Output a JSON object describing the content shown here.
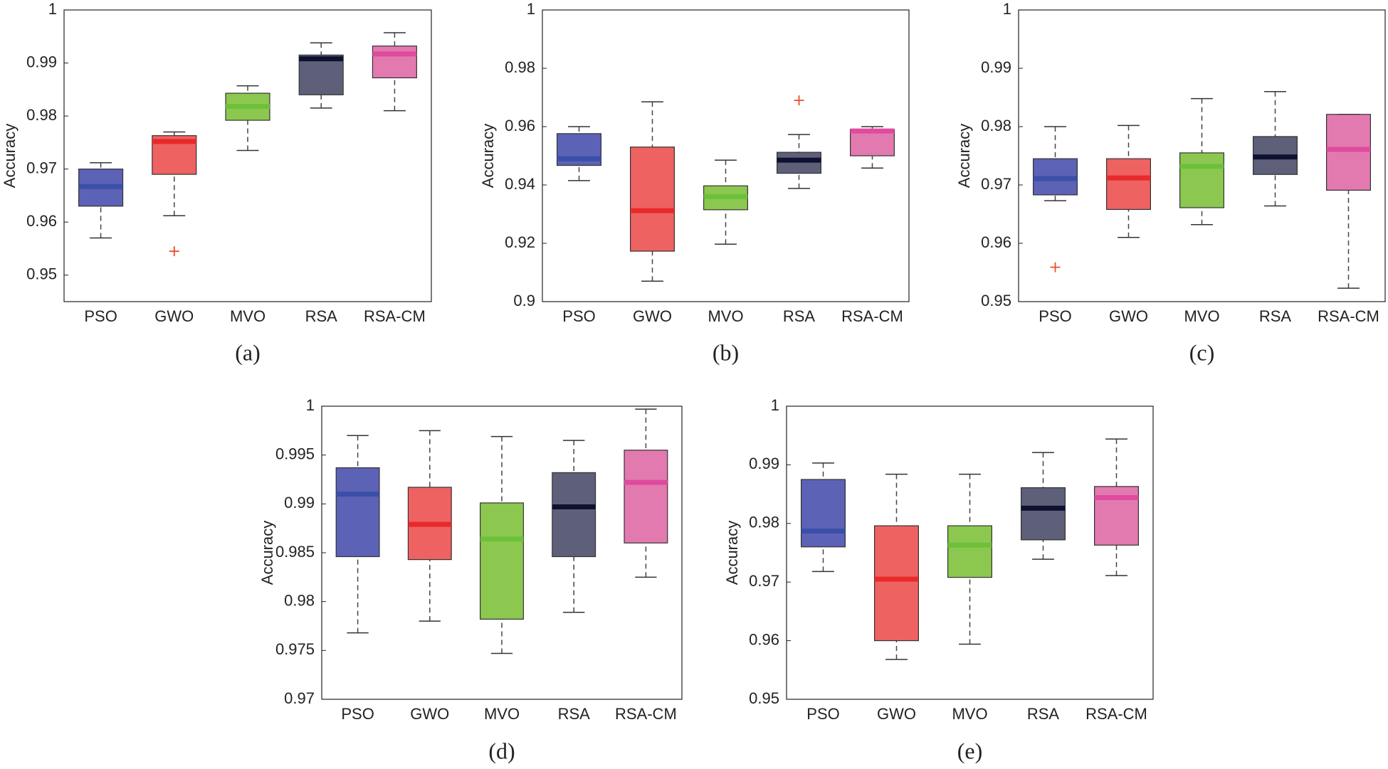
{
  "chart_data": [
    {
      "type": "box",
      "caption": "(a)",
      "ylabel": "Accuracy",
      "categories": [
        "PSO",
        "GWO",
        "MVO",
        "RSA",
        "RSA-CM"
      ],
      "colors": [
        "#5c62b5",
        "#ef6262",
        "#8cc850",
        "#5e5f78",
        "#e27ab0"
      ],
      "median_colors": [
        "#3a4fa8",
        "#e82a2a",
        "#6ec03a",
        "#0e1230",
        "#df4b9e"
      ],
      "outlier_color": "#e8502a",
      "whisker_low": [
        0.957,
        0.9612,
        0.9735,
        0.9815,
        0.981
      ],
      "q1": [
        0.963,
        0.969,
        0.9792,
        0.984,
        0.9872
      ],
      "median": [
        0.9667,
        0.9752,
        0.9818,
        0.9908,
        0.9917
      ],
      "q3": [
        0.97,
        0.9763,
        0.9843,
        0.9915,
        0.9932
      ],
      "whisker_high": [
        0.9712,
        0.977,
        0.9857,
        0.9938,
        0.9957
      ],
      "outliers": [
        [],
        [
          0.9545
        ],
        [],
        [],
        []
      ],
      "ylim": [
        0.945,
        1
      ],
      "yticks": [
        0.95,
        0.96,
        0.97,
        0.98,
        0.99,
        1
      ]
    },
    {
      "type": "box",
      "caption": "(b)",
      "ylabel": "Accuracy",
      "categories": [
        "PSO",
        "GWO",
        "MVO",
        "RSA",
        "RSA-CM"
      ],
      "colors": [
        "#5c62b5",
        "#ef6262",
        "#8cc850",
        "#5e5f78",
        "#e27ab0"
      ],
      "median_colors": [
        "#3a4fa8",
        "#e82a2a",
        "#6ec03a",
        "#0e1230",
        "#df4b9e"
      ],
      "outlier_color": "#e8502a",
      "whisker_low": [
        0.9415,
        0.907,
        0.9197,
        0.9388,
        0.9458
      ],
      "q1": [
        0.9467,
        0.9173,
        0.9315,
        0.944,
        0.95
      ],
      "median": [
        0.949,
        0.9312,
        0.936,
        0.9485,
        0.9585
      ],
      "q3": [
        0.9576,
        0.953,
        0.9397,
        0.9512,
        0.959
      ],
      "whisker_high": [
        0.96,
        0.9685,
        0.9485,
        0.9573,
        0.96
      ],
      "outliers": [
        [],
        [],
        [],
        [
          0.969
        ],
        []
      ],
      "ylim": [
        0.9,
        1
      ],
      "yticks": [
        0.9,
        0.92,
        0.94,
        0.96,
        0.98,
        1
      ]
    },
    {
      "type": "box",
      "caption": "(c)",
      "ylabel": "Accuracy",
      "categories": [
        "PSO",
        "GWO",
        "MVO",
        "RSA",
        "RSA-CM"
      ],
      "colors": [
        "#5c62b5",
        "#ef6262",
        "#8cc850",
        "#5e5f78",
        "#e27ab0"
      ],
      "median_colors": [
        "#3a4fa8",
        "#e82a2a",
        "#6ec03a",
        "#0e1230",
        "#df4b9e"
      ],
      "outlier_color": "#e8502a",
      "whisker_low": [
        0.9673,
        0.961,
        0.9632,
        0.9664,
        0.9523
      ],
      "q1": [
        0.9683,
        0.9658,
        0.9661,
        0.9718,
        0.9691
      ],
      "median": [
        0.9711,
        0.9712,
        0.9732,
        0.9748,
        0.9761
      ],
      "q3": [
        0.9745,
        0.9745,
        0.9755,
        0.9783,
        0.9821
      ],
      "whisker_high": [
        0.98,
        0.9802,
        0.9848,
        0.986,
        0.9821
      ],
      "outliers": [
        [
          0.9559
        ],
        [],
        [],
        [],
        []
      ],
      "ylim": [
        0.95,
        1
      ],
      "yticks": [
        0.95,
        0.96,
        0.97,
        0.98,
        0.99,
        1
      ]
    },
    {
      "type": "box",
      "caption": "(d)",
      "ylabel": "Accuracy",
      "categories": [
        "PSO",
        "GWO",
        "MVO",
        "RSA",
        "RSA-CM"
      ],
      "colors": [
        "#5c62b5",
        "#ef6262",
        "#8cc850",
        "#5e5f78",
        "#e27ab0"
      ],
      "median_colors": [
        "#3a4fa8",
        "#e82a2a",
        "#6ec03a",
        "#0e1230",
        "#df4b9e"
      ],
      "outlier_color": "#e8502a",
      "whisker_low": [
        0.9768,
        0.978,
        0.9747,
        0.9789,
        0.9825
      ],
      "q1": [
        0.9846,
        0.9843,
        0.9782,
        0.9846,
        0.986
      ],
      "median": [
        0.991,
        0.9879,
        0.9864,
        0.9897,
        0.9922
      ],
      "q3": [
        0.9937,
        0.9917,
        0.9901,
        0.9932,
        0.9955
      ],
      "whisker_high": [
        0.997,
        0.9975,
        0.9969,
        0.9965,
        0.9997
      ],
      "outliers": [
        [],
        [],
        [],
        [],
        []
      ],
      "ylim": [
        0.97,
        1
      ],
      "yticks": [
        0.97,
        0.975,
        0.98,
        0.985,
        0.99,
        0.995,
        1
      ]
    },
    {
      "type": "box",
      "caption": "(e)",
      "ylabel": "Accuracy",
      "categories": [
        "PSO",
        "GWO",
        "MVO",
        "RSA",
        "RSA-CM"
      ],
      "colors": [
        "#5c62b5",
        "#ef6262",
        "#8cc850",
        "#5e5f78",
        "#e27ab0"
      ],
      "median_colors": [
        "#3a4fa8",
        "#e82a2a",
        "#6ec03a",
        "#0e1230",
        "#df4b9e"
      ],
      "outlier_color": "#e8502a",
      "whisker_low": [
        0.9718,
        0.9568,
        0.9594,
        0.9739,
        0.9711
      ],
      "q1": [
        0.976,
        0.96,
        0.9708,
        0.9772,
        0.9763
      ],
      "median": [
        0.9787,
        0.9705,
        0.9763,
        0.9826,
        0.9844
      ],
      "q3": [
        0.9875,
        0.9796,
        0.9796,
        0.9861,
        0.9863
      ],
      "whisker_high": [
        0.9903,
        0.9884,
        0.9884,
        0.9921,
        0.9944
      ],
      "outliers": [
        [],
        [],
        [],
        [],
        []
      ],
      "ylim": [
        0.95,
        1
      ],
      "yticks": [
        0.95,
        0.96,
        0.97,
        0.98,
        0.99,
        1
      ]
    }
  ]
}
